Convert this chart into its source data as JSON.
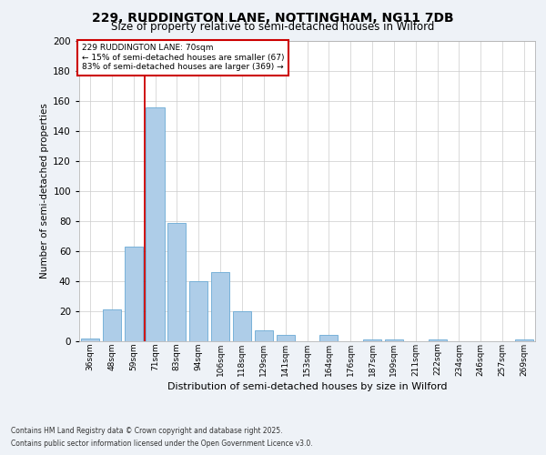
{
  "title1": "229, RUDDINGTON LANE, NOTTINGHAM, NG11 7DB",
  "title2": "Size of property relative to semi-detached houses in Wilford",
  "xlabel": "Distribution of semi-detached houses by size in Wilford",
  "ylabel": "Number of semi-detached properties",
  "categories": [
    "36sqm",
    "48sqm",
    "59sqm",
    "71sqm",
    "83sqm",
    "94sqm",
    "106sqm",
    "118sqm",
    "129sqm",
    "141sqm",
    "153sqm",
    "164sqm",
    "176sqm",
    "187sqm",
    "199sqm",
    "211sqm",
    "222sqm",
    "234sqm",
    "246sqm",
    "257sqm",
    "269sqm"
  ],
  "values": [
    2,
    21,
    63,
    156,
    79,
    40,
    46,
    20,
    7,
    4,
    0,
    4,
    0,
    1,
    1,
    0,
    1,
    0,
    0,
    0,
    1
  ],
  "bar_color": "#aecde8",
  "bar_edge_color": "#6aaad4",
  "vline_color": "#cc0000",
  "annotation_box_color": "#cc0000",
  "pct_smaller": 15,
  "n_smaller": 67,
  "pct_larger": 83,
  "n_larger": 369,
  "ylim": [
    0,
    200
  ],
  "yticks": [
    0,
    20,
    40,
    60,
    80,
    100,
    120,
    140,
    160,
    180,
    200
  ],
  "footer1": "Contains HM Land Registry data © Crown copyright and database right 2025.",
  "footer2": "Contains public sector information licensed under the Open Government Licence v3.0.",
  "bg_color": "#eef2f7",
  "plot_bg_color": "#ffffff",
  "grid_color": "#cccccc"
}
